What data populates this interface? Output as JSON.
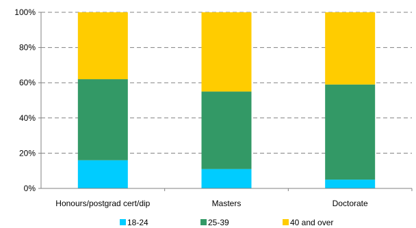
{
  "chart_data": {
    "type": "bar",
    "stacked": true,
    "categories": [
      "Honours/postgrad cert/dip",
      "Masters",
      "Doctorate"
    ],
    "series": [
      {
        "name": "18-24",
        "values": [
          16,
          11,
          5
        ],
        "color": "#00ccff"
      },
      {
        "name": "25-39",
        "values": [
          46,
          44,
          54
        ],
        "color": "#339966"
      },
      {
        "name": "40 and over",
        "values": [
          38,
          45,
          41
        ],
        "color": "#ffcc00"
      }
    ],
    "ylim": [
      0,
      100
    ],
    "yticks": [
      {
        "value": 0,
        "label": "0%"
      },
      {
        "value": 20,
        "label": "20%"
      },
      {
        "value": 40,
        "label": "40%"
      },
      {
        "value": 60,
        "label": "60%"
      },
      {
        "value": 80,
        "label": "80%"
      },
      {
        "value": 100,
        "label": "100%"
      }
    ],
    "grid": "horizontal dashed",
    "legend_position": "bottom",
    "title": "",
    "xlabel": "",
    "ylabel": ""
  }
}
